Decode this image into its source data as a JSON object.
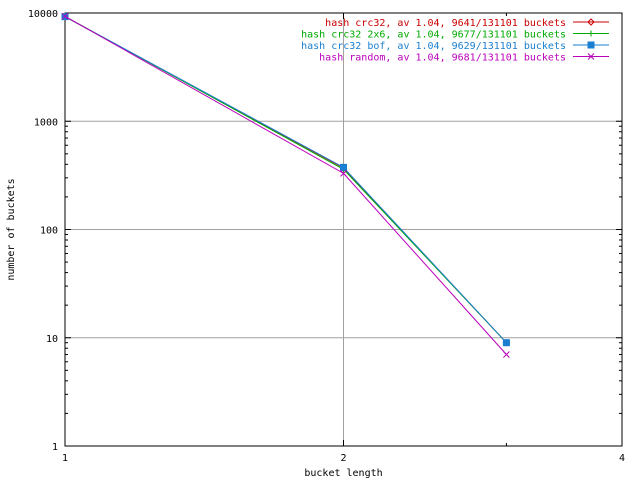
{
  "chart_data": {
    "type": "line",
    "xlabel": "bucket length",
    "ylabel": "number of buckets",
    "xscale": "log",
    "yscale": "log",
    "xlim": [
      1,
      4
    ],
    "ylim": [
      1,
      10000
    ],
    "grid": true,
    "legend_position": "top-right",
    "x_ticks": [
      {
        "value": 1,
        "label": "1"
      },
      {
        "value": 2,
        "label": "2"
      },
      {
        "value": 4,
        "label": "4"
      }
    ],
    "y_ticks": [
      {
        "value": 1,
        "label": "1"
      },
      {
        "value": 10,
        "label": "10"
      },
      {
        "value": 100,
        "label": "100"
      },
      {
        "value": 1000,
        "label": "1000"
      },
      {
        "value": 10000,
        "label": "10000"
      }
    ],
    "series": [
      {
        "name": "hash crc32, av 1.04, 9641/131101 buckets",
        "color": "#cc0000",
        "marker": "diamond",
        "x": [
          1,
          2,
          3
        ],
        "y": [
          9250,
          370,
          9
        ]
      },
      {
        "name": "hash crc32 2x6, av 1.04, 9677/131101 buckets",
        "color": "#00aa00",
        "marker": "plus",
        "x": [
          1,
          2,
          3
        ],
        "y": [
          9300,
          360,
          9
        ]
      },
      {
        "name": "hash crc32 bof, av 1.04, 9629/131101 buckets",
        "color": "#1a7fd0",
        "marker": "square",
        "x": [
          1,
          2,
          3
        ],
        "y": [
          9250,
          375,
          9
        ]
      },
      {
        "name": "hash random, av 1.04, 9681/131101 buckets",
        "color": "#bb00bb",
        "marker": "cross",
        "x": [
          1,
          2,
          3
        ],
        "y": [
          9320,
          330,
          7
        ]
      }
    ]
  }
}
